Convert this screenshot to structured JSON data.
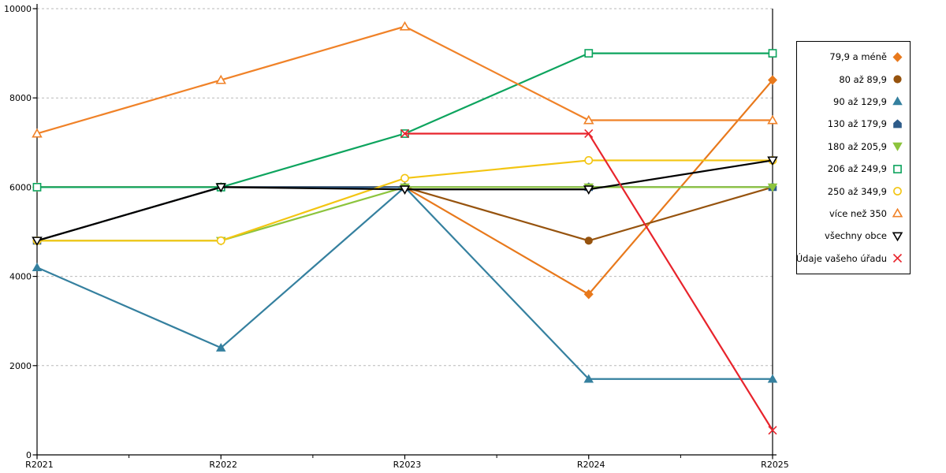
{
  "chart_data": {
    "type": "line",
    "title": "",
    "xlabel": "",
    "ylabel": "",
    "x_categories": [
      "R2021",
      "R2022",
      "R2023",
      "R2024",
      "R2025"
    ],
    "ylim": [
      0,
      10000
    ],
    "y_ticks": [
      0,
      2000,
      4000,
      6000,
      8000,
      10000
    ],
    "grid": "horizontal-dashed",
    "grid_color": "#b9b9b9",
    "axis_color": "#000000",
    "legend_position": "right-outside-boxed",
    "series": [
      {
        "name": "79,9 a méně",
        "marker": "diamond",
        "marker_fill": "solid",
        "color": "#e8791c",
        "values": [
          6000,
          6000,
          6000,
          3600,
          8400
        ]
      },
      {
        "name": "80 až 89,9",
        "marker": "circle",
        "marker_fill": "solid",
        "color": "#96530e",
        "values": [
          4800,
          6000,
          6000,
          4800,
          6000
        ]
      },
      {
        "name": "90 až 129,9",
        "marker": "triangle-up",
        "marker_fill": "solid",
        "color": "#35809f",
        "values": [
          4200,
          2400,
          6000,
          1700,
          1700
        ]
      },
      {
        "name": "130 až 179,9",
        "marker": "pentagon",
        "marker_fill": "solid",
        "color": "#2e5c8a",
        "values": [
          4800,
          6000,
          6000,
          6000,
          6000
        ]
      },
      {
        "name": "180 až 205,9",
        "marker": "triangle-down",
        "marker_fill": "solid",
        "color": "#8cc43d",
        "values": [
          4800,
          4800,
          6000,
          6000,
          6000
        ]
      },
      {
        "name": "206 až 249,9",
        "marker": "square",
        "marker_fill": "open",
        "color": "#0da45e",
        "values": [
          6000,
          6000,
          7200,
          9000,
          9000
        ]
      },
      {
        "name": "250 až 349,9",
        "marker": "circle",
        "marker_fill": "open",
        "color": "#f3c512",
        "values": [
          4800,
          4800,
          6200,
          6600,
          6600
        ]
      },
      {
        "name": "více než 350",
        "marker": "triangle-up",
        "marker_fill": "open",
        "color": "#f08228",
        "values": [
          7200,
          8400,
          9600,
          7500,
          7500
        ]
      },
      {
        "name": "všechny obce",
        "marker": "triangle-down",
        "marker_fill": "open",
        "color": "#000000",
        "values": [
          4800,
          6000,
          5950,
          5950,
          6600
        ]
      },
      {
        "name": "Údaje vašeho úřadu",
        "marker": "x",
        "marker_fill": "open",
        "color": "#e8242c",
        "values": [
          null,
          null,
          7200,
          7200,
          550
        ]
      }
    ]
  }
}
